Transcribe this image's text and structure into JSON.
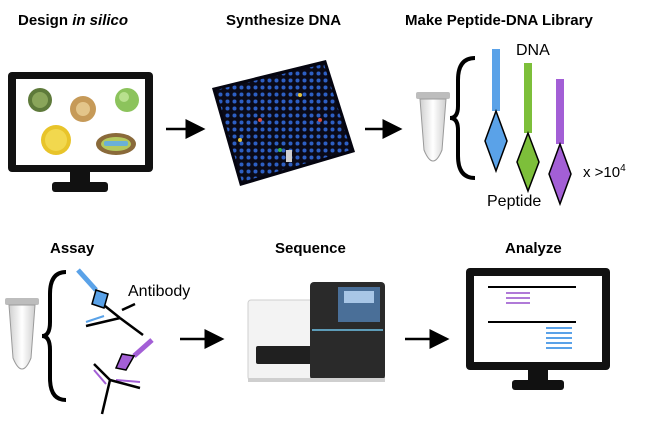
{
  "steps": {
    "design": {
      "title_prefix": "Design ",
      "title_italic": "in silico"
    },
    "synthesize": {
      "title": "Synthesize DNA"
    },
    "library": {
      "title": "Make Peptide-DNA Library",
      "dna_label": "DNA",
      "peptide_label": "Peptide",
      "count_prefix": "x >10",
      "count_exponent": "4"
    },
    "assay": {
      "title": "Assay",
      "antibody_label": "Antibody"
    },
    "sequence": {
      "title": "Sequence"
    },
    "analyze": {
      "title": "Analyze"
    }
  },
  "colors": {
    "dna_blue": "#5aa2e8",
    "dna_green": "#7dbf3a",
    "dna_purple": "#a35fd6",
    "analyze_purple": "#b07ad8",
    "analyze_blue": "#5aa2e8"
  }
}
